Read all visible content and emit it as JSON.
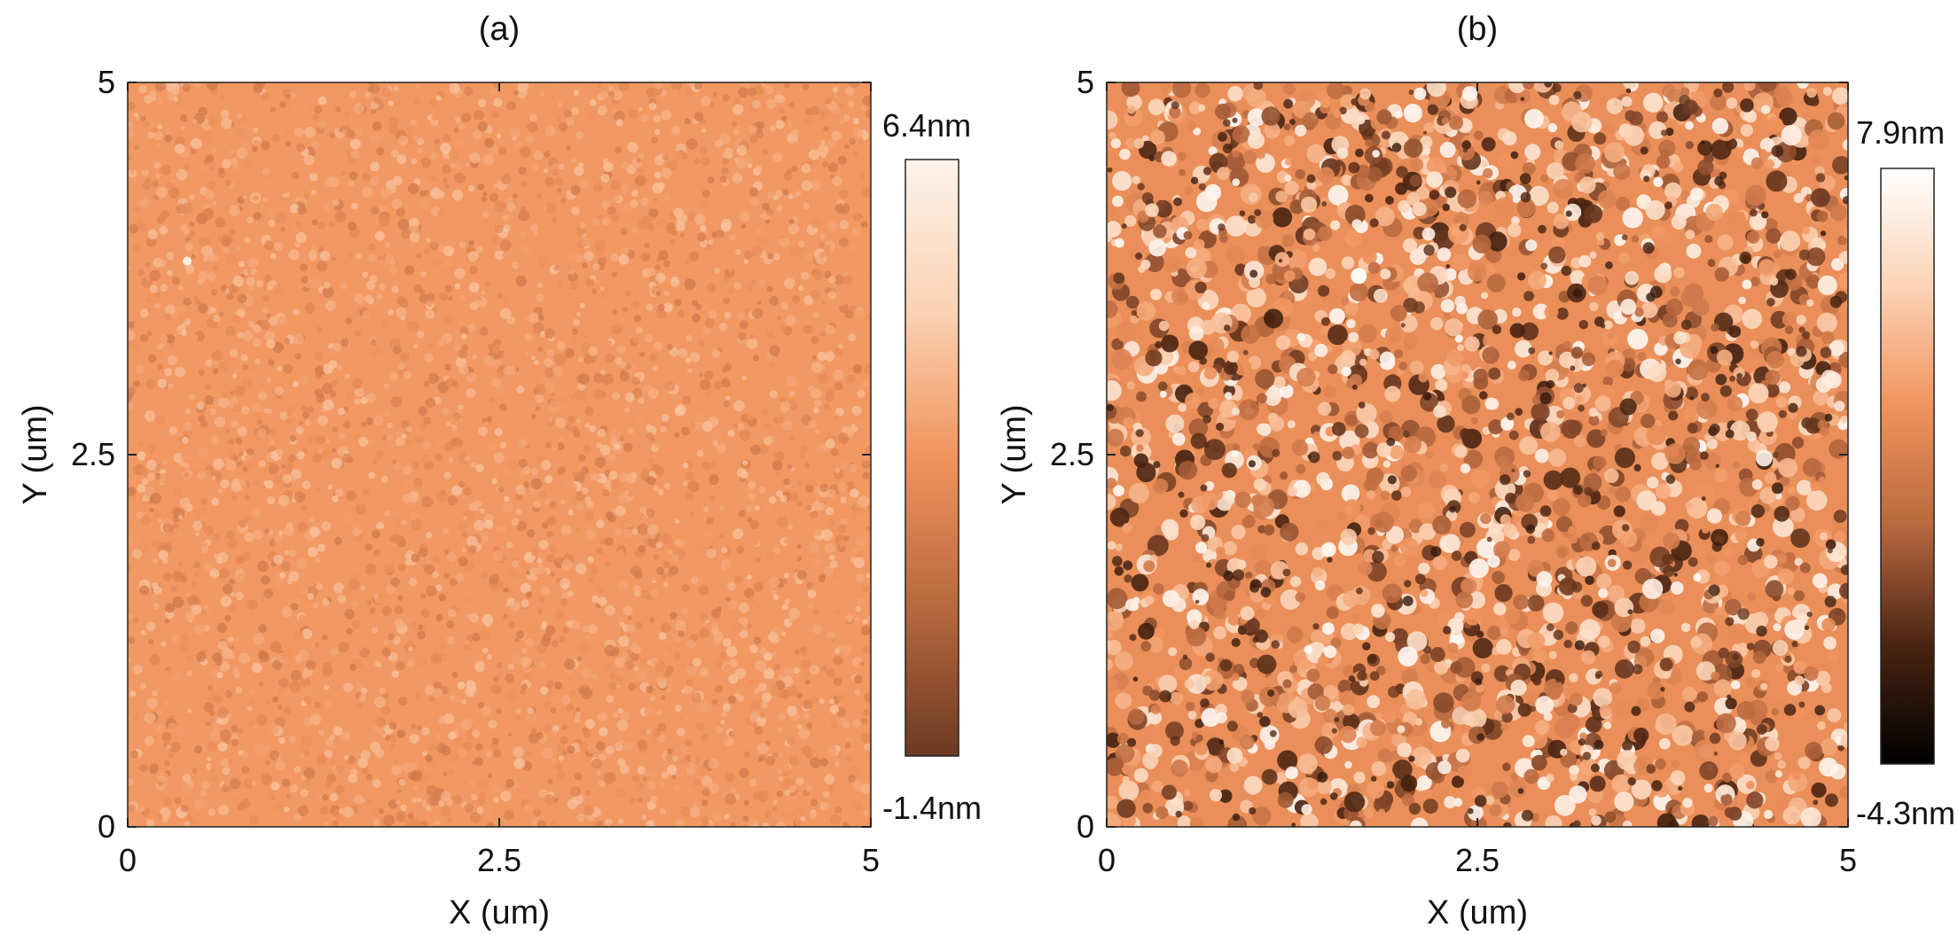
{
  "chart_data": [
    {
      "type": "heatmap",
      "panel_label": "(a)",
      "xlabel": "X (um)",
      "ylabel": "Y (um)",
      "xlim": [
        0,
        5
      ],
      "ylim": [
        0,
        5
      ],
      "xticks": [
        "0",
        "2.5",
        "5"
      ],
      "yticks": [
        "0",
        "2.5",
        "5"
      ],
      "colorbar": {
        "min": -1.4,
        "max": 6.4,
        "unit": "nm",
        "min_label": "-1.4nm",
        "max_label": "6.4nm",
        "colormap": [
          "#6b3a22",
          "#b8683f",
          "#f0935c",
          "#fbd3b5",
          "#fdf3ea"
        ]
      },
      "description_values": {
        "mean_height_fraction": 0.52,
        "variation": 0.18,
        "bright_spot": {
          "x": 0.4,
          "y": 3.8
        }
      }
    },
    {
      "type": "heatmap",
      "panel_label": "(b)",
      "xlabel": "X (um)",
      "ylabel": "Y (um)",
      "xlim": [
        0,
        5
      ],
      "ylim": [
        0,
        5
      ],
      "xticks": [
        "0",
        "2.5",
        "5"
      ],
      "yticks": [
        "0",
        "2.5",
        "5"
      ],
      "colorbar": {
        "min": -4.3,
        "max": 7.9,
        "unit": "nm",
        "min_label": "-4.3nm",
        "max_label": "7.9nm",
        "colormap": [
          "#000000",
          "#4a2412",
          "#b8683f",
          "#f0935c",
          "#fbd3b5",
          "#ffffff"
        ]
      },
      "description_values": {
        "mean_height_fraction": 0.58,
        "variation": 0.4,
        "bright_spot": {
          "x": 1.7,
          "y": 3.7
        }
      }
    }
  ]
}
